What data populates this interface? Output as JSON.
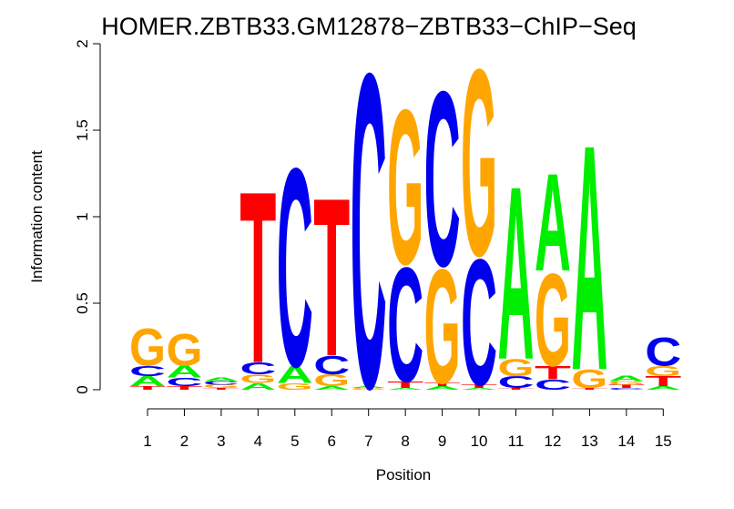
{
  "chart_data": {
    "type": "sequence-logo",
    "title": "HOMER.ZBTB33.GM12878−ZBTB33−ChIP−Seq",
    "xlabel": "Position",
    "ylabel": "Information content",
    "ylim": [
      0,
      2
    ],
    "yticks": [
      "0",
      "0.5",
      "1",
      "1.5",
      "2"
    ],
    "xticks": [
      "1",
      "2",
      "3",
      "4",
      "5",
      "6",
      "7",
      "8",
      "9",
      "10",
      "11",
      "12",
      "13",
      "14",
      "15"
    ],
    "colors": {
      "A": "#00ee00",
      "C": "#0000ee",
      "G": "#ffa500",
      "T": "#ff0000"
    },
    "positions": [
      {
        "pos": "1",
        "letters": [
          {
            "base": "T",
            "height": 0.02
          },
          {
            "base": "A",
            "height": 0.06
          },
          {
            "base": "C",
            "height": 0.06
          },
          {
            "base": "G",
            "height": 0.22
          }
        ]
      },
      {
        "pos": "2",
        "letters": [
          {
            "base": "T",
            "height": 0.02
          },
          {
            "base": "C",
            "height": 0.05
          },
          {
            "base": "A",
            "height": 0.07
          },
          {
            "base": "G",
            "height": 0.19
          }
        ]
      },
      {
        "pos": "3",
        "letters": [
          {
            "base": "T",
            "height": 0.01
          },
          {
            "base": "G",
            "height": 0.02
          },
          {
            "base": "C",
            "height": 0.02
          },
          {
            "base": "A",
            "height": 0.02
          }
        ]
      },
      {
        "pos": "4",
        "letters": [
          {
            "base": "A",
            "height": 0.04
          },
          {
            "base": "G",
            "height": 0.05
          },
          {
            "base": "C",
            "height": 0.07
          },
          {
            "base": "T",
            "height": 1.02
          }
        ]
      },
      {
        "pos": "5",
        "letters": [
          {
            "base": "G",
            "height": 0.04
          },
          {
            "base": "A",
            "height": 0.1
          },
          {
            "base": "C",
            "height": 1.18
          }
        ]
      },
      {
        "pos": "6",
        "letters": [
          {
            "base": "A",
            "height": 0.02
          },
          {
            "base": "G",
            "height": 0.07
          },
          {
            "base": "C",
            "height": 0.11
          },
          {
            "base": "T",
            "height": 0.94
          }
        ]
      },
      {
        "pos": "7",
        "letters": [
          {
            "base": "G",
            "height": 0.01
          },
          {
            "base": "A",
            "height": 0.01
          },
          {
            "base": "C",
            "height": 1.87
          }
        ]
      },
      {
        "pos": "8",
        "letters": [
          {
            "base": "A",
            "height": 0.01
          },
          {
            "base": "T",
            "height": 0.04
          },
          {
            "base": "C",
            "height": 0.68
          },
          {
            "base": "G",
            "height": 0.92
          }
        ]
      },
      {
        "pos": "9",
        "letters": [
          {
            "base": "A",
            "height": 0.02
          },
          {
            "base": "T",
            "height": 0.02
          },
          {
            "base": "G",
            "height": 0.68
          },
          {
            "base": "C",
            "height": 1.04
          }
        ]
      },
      {
        "pos": "10",
        "letters": [
          {
            "base": "A",
            "height": 0.01
          },
          {
            "base": "T",
            "height": 0.02
          },
          {
            "base": "C",
            "height": 0.75
          },
          {
            "base": "G",
            "height": 1.11
          }
        ]
      },
      {
        "pos": "11",
        "letters": [
          {
            "base": "T",
            "height": 0.01
          },
          {
            "base": "C",
            "height": 0.07
          },
          {
            "base": "G",
            "height": 0.1
          },
          {
            "base": "A",
            "height": 1.03
          }
        ]
      },
      {
        "pos": "12",
        "letters": [
          {
            "base": "C",
            "height": 0.06
          },
          {
            "base": "T",
            "height": 0.08
          },
          {
            "base": "G",
            "height": 0.55
          },
          {
            "base": "A",
            "height": 0.58
          }
        ]
      },
      {
        "pos": "13",
        "letters": [
          {
            "base": "T",
            "height": 0.01
          },
          {
            "base": "G",
            "height": 0.11
          },
          {
            "base": "A",
            "height": 1.34
          }
        ]
      },
      {
        "pos": "14",
        "letters": [
          {
            "base": "C",
            "height": 0.01
          },
          {
            "base": "T",
            "height": 0.02
          },
          {
            "base": "G",
            "height": 0.02
          },
          {
            "base": "A",
            "height": 0.03
          }
        ]
      },
      {
        "pos": "15",
        "letters": [
          {
            "base": "A",
            "height": 0.02
          },
          {
            "base": "T",
            "height": 0.06
          },
          {
            "base": "G",
            "height": 0.06
          },
          {
            "base": "C",
            "height": 0.17
          }
        ]
      }
    ]
  }
}
